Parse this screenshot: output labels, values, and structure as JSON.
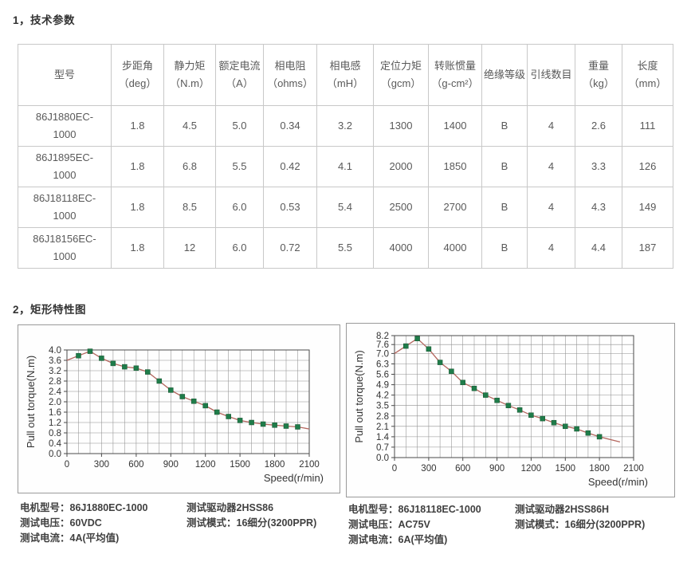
{
  "section1": {
    "title": "1，技术参数",
    "table": {
      "headers": [
        "型号",
        "步距角（deg）",
        "静力矩（N.m）",
        "额定电流（A）",
        "相电阻（ohms）",
        "相电感（mH）",
        "定位力矩（gcm）",
        "转账惯量（g-cm²）",
        "绝缘等级",
        "引线数目",
        "重量（kg）",
        "长度（mm）"
      ],
      "rows": [
        [
          "86J1880EC-1000",
          "1.8",
          "4.5",
          "5.0",
          "0.34",
          "3.2",
          "1300",
          "1400",
          "B",
          "4",
          "2.6",
          "111"
        ],
        [
          "86J1895EC-1000",
          "1.8",
          "6.8",
          "5.5",
          "0.42",
          "4.1",
          "2000",
          "1850",
          "B",
          "4",
          "3.3",
          "126"
        ],
        [
          "86J18118EC-1000",
          "1.8",
          "8.5",
          "6.0",
          "0.53",
          "5.4",
          "2500",
          "2700",
          "B",
          "4",
          "4.3",
          "149"
        ],
        [
          "86J18156EC-1000",
          "1.8",
          "12",
          "6.0",
          "0.72",
          "5.5",
          "4000",
          "4000",
          "B",
          "4",
          "4.4",
          "187"
        ]
      ]
    }
  },
  "section2": {
    "title": "2，矩形特性图",
    "colors": {
      "line": "#b4675f",
      "marker": "#1f7c4a",
      "marker_edge": "#14532d",
      "grid": "#8f8f8f"
    },
    "captions": [
      {
        "col1": [
          "电机型号：86J1880EC-1000",
          "测试电压：60VDC",
          "测试电流：4A(平均值)"
        ],
        "col2": [
          "测试驱动器2HSS86",
          "测试模式：16细分(3200PPR)"
        ]
      },
      {
        "col1": [
          "电机型号：86J18118EC-1000",
          "测试电压：AC75V",
          "测试电流：6A(平均值)"
        ],
        "col2": [
          "测试驱动器2HSS86H",
          "测试模式：16细分(3200PPR)"
        ]
      }
    ]
  },
  "chart_data": [
    {
      "type": "line",
      "title": "86J1880EC-1000 pull-out torque curve",
      "xlabel": "Speed(r/min)",
      "ylabel": "Pull out torque(N.m)",
      "xlim": [
        0,
        2100
      ],
      "ylim": [
        0,
        4.0
      ],
      "xgrid_step": 100,
      "xticks": [
        0,
        300,
        600,
        900,
        1200,
        1500,
        1800,
        2100
      ],
      "yticks": [
        "0.0",
        "0.4",
        "0.8",
        "1.2",
        "1.6",
        "2.0",
        "2.4",
        "2.8",
        "3.2",
        "3.6",
        "4.0"
      ],
      "grid": true,
      "curve": [
        [
          0,
          3.6
        ],
        [
          100,
          3.78
        ],
        [
          200,
          3.95
        ],
        [
          300,
          3.68
        ],
        [
          400,
          3.48
        ],
        [
          500,
          3.35
        ],
        [
          600,
          3.3
        ],
        [
          700,
          3.15
        ],
        [
          800,
          2.8
        ],
        [
          900,
          2.45
        ],
        [
          1000,
          2.2
        ],
        [
          1100,
          2.02
        ],
        [
          1200,
          1.85
        ],
        [
          1300,
          1.6
        ],
        [
          1400,
          1.43
        ],
        [
          1500,
          1.28
        ],
        [
          1600,
          1.2
        ],
        [
          1700,
          1.14
        ],
        [
          1800,
          1.1
        ],
        [
          1900,
          1.06
        ],
        [
          2000,
          1.03
        ],
        [
          2100,
          0.95
        ]
      ],
      "markers": [
        [
          100,
          3.78
        ],
        [
          200,
          3.95
        ],
        [
          300,
          3.68
        ],
        [
          400,
          3.48
        ],
        [
          500,
          3.35
        ],
        [
          600,
          3.3
        ],
        [
          700,
          3.15
        ],
        [
          800,
          2.8
        ],
        [
          900,
          2.45
        ],
        [
          1000,
          2.2
        ],
        [
          1100,
          2.02
        ],
        [
          1200,
          1.85
        ],
        [
          1300,
          1.6
        ],
        [
          1400,
          1.43
        ],
        [
          1500,
          1.28
        ],
        [
          1600,
          1.2
        ],
        [
          1700,
          1.14
        ],
        [
          1800,
          1.1
        ],
        [
          1900,
          1.06
        ],
        [
          2000,
          1.03
        ]
      ]
    },
    {
      "type": "line",
      "title": "86J18118EC-1000 pull-out torque curve",
      "xlabel": "Speed(r/min)",
      "ylabel": "Pull out torque(N.m)",
      "xlim": [
        0,
        2100
      ],
      "ylim": [
        0,
        8.2
      ],
      "xgrid_step": 100,
      "xticks": [
        0,
        300,
        600,
        900,
        1200,
        1500,
        1800,
        2100
      ],
      "yticks": [
        "0.0",
        "0.7",
        "1.4",
        "2.1",
        "2.8",
        "3.5",
        "4.2",
        "4.9",
        "5.6",
        "6.3",
        "7.0",
        "7.6",
        "8.2"
      ],
      "grid": true,
      "curve": [
        [
          0,
          7.0
        ],
        [
          100,
          7.5
        ],
        [
          200,
          8.0
        ],
        [
          300,
          7.3
        ],
        [
          400,
          6.4
        ],
        [
          500,
          5.8
        ],
        [
          600,
          5.05
        ],
        [
          700,
          4.65
        ],
        [
          800,
          4.2
        ],
        [
          900,
          3.85
        ],
        [
          1000,
          3.5
        ],
        [
          1100,
          3.2
        ],
        [
          1200,
          2.85
        ],
        [
          1300,
          2.62
        ],
        [
          1400,
          2.35
        ],
        [
          1500,
          2.1
        ],
        [
          1600,
          1.93
        ],
        [
          1700,
          1.65
        ],
        [
          1800,
          1.4
        ],
        [
          1980,
          1.05
        ]
      ],
      "markers": [
        [
          100,
          7.5
        ],
        [
          200,
          8.0
        ],
        [
          300,
          7.3
        ],
        [
          400,
          6.4
        ],
        [
          500,
          5.8
        ],
        [
          600,
          5.05
        ],
        [
          700,
          4.65
        ],
        [
          800,
          4.2
        ],
        [
          900,
          3.85
        ],
        [
          1000,
          3.5
        ],
        [
          1100,
          3.2
        ],
        [
          1200,
          2.85
        ],
        [
          1300,
          2.62
        ],
        [
          1400,
          2.35
        ],
        [
          1500,
          2.1
        ],
        [
          1600,
          1.93
        ],
        [
          1700,
          1.65
        ],
        [
          1800,
          1.4
        ]
      ]
    }
  ]
}
